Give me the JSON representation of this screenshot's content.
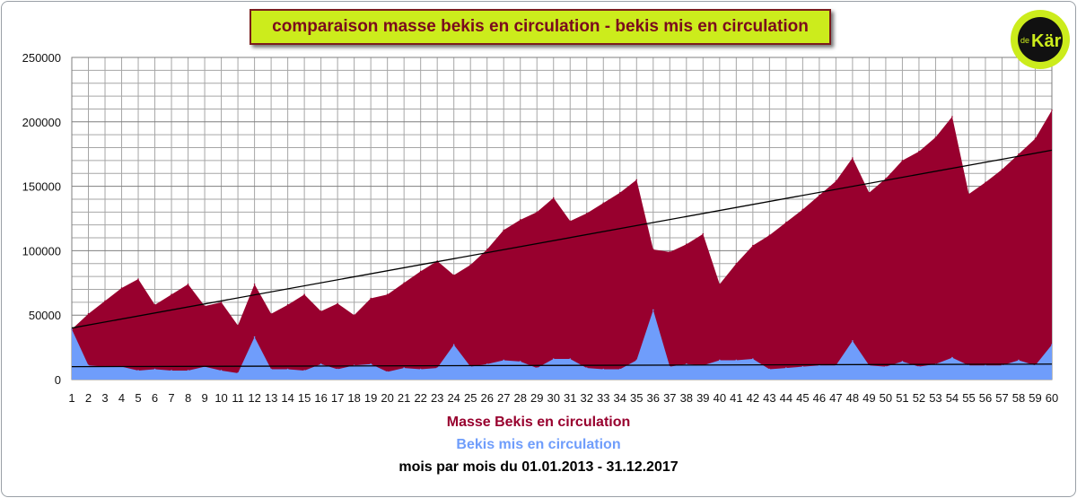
{
  "logo": {
    "text_small": "de",
    "text_main": "Kär",
    "bg_color": "#ccec1c"
  },
  "chart_data": {
    "type": "area",
    "title": "comparaison masse bekis en circulation - bekis mis en circulation",
    "xlabel": "mois par mois du 01.01.2013 - 31.12.2017",
    "ylim": [
      0,
      250000
    ],
    "yticks": [
      "0",
      "50000",
      "100000",
      "150000",
      "200000",
      "250000"
    ],
    "grid": true,
    "legend_placement": "bottom",
    "x": [
      1,
      2,
      3,
      4,
      5,
      6,
      7,
      8,
      9,
      10,
      11,
      12,
      13,
      14,
      15,
      16,
      17,
      18,
      19,
      20,
      21,
      22,
      23,
      24,
      25,
      26,
      27,
      28,
      29,
      30,
      31,
      32,
      33,
      34,
      35,
      36,
      37,
      38,
      39,
      40,
      41,
      42,
      43,
      44,
      45,
      46,
      47,
      48,
      49,
      50,
      51,
      52,
      53,
      54,
      55,
      56,
      57,
      58,
      59,
      60
    ],
    "series": [
      {
        "name": "Masse Bekis en circulation",
        "color": "#98002e",
        "values": [
          39000,
          51000,
          61000,
          71000,
          78000,
          58000,
          66000,
          74000,
          57000,
          60000,
          42000,
          74000,
          51000,
          58000,
          66000,
          53000,
          59000,
          50000,
          63000,
          66000,
          75000,
          84000,
          92000,
          81000,
          89000,
          101000,
          116000,
          124000,
          130000,
          141000,
          123000,
          129000,
          137000,
          145000,
          155000,
          101000,
          99000,
          105000,
          113000,
          74000,
          90000,
          104000,
          112000,
          122000,
          132000,
          143000,
          154000,
          172000,
          145000,
          156000,
          170000,
          177000,
          188000,
          204000,
          144000,
          153000,
          163000,
          175000,
          187000,
          209000
        ]
      },
      {
        "name": "Bekis mis en circulation",
        "color": "#6f9dfb",
        "values": [
          39000,
          11000,
          10000,
          10000,
          7000,
          8000,
          7000,
          7000,
          10000,
          7000,
          5000,
          33000,
          8000,
          8000,
          7000,
          12000,
          8000,
          11000,
          12000,
          6000,
          9000,
          8000,
          9000,
          27000,
          10000,
          12000,
          15000,
          14000,
          9000,
          16000,
          16000,
          9000,
          8000,
          8000,
          15000,
          54000,
          10000,
          12000,
          11000,
          15000,
          15000,
          16000,
          8000,
          9000,
          10000,
          11000,
          11000,
          30000,
          11000,
          10000,
          14000,
          10000,
          12000,
          17000,
          11000,
          11000,
          11000,
          15000,
          11000,
          27000
        ]
      }
    ],
    "trendlines": [
      {
        "color": "#000000",
        "from": [
          1,
          40000
        ],
        "to": [
          60,
          178000
        ]
      },
      {
        "color": "#000000",
        "from": [
          1,
          10000
        ],
        "to": [
          60,
          12000
        ]
      }
    ]
  }
}
